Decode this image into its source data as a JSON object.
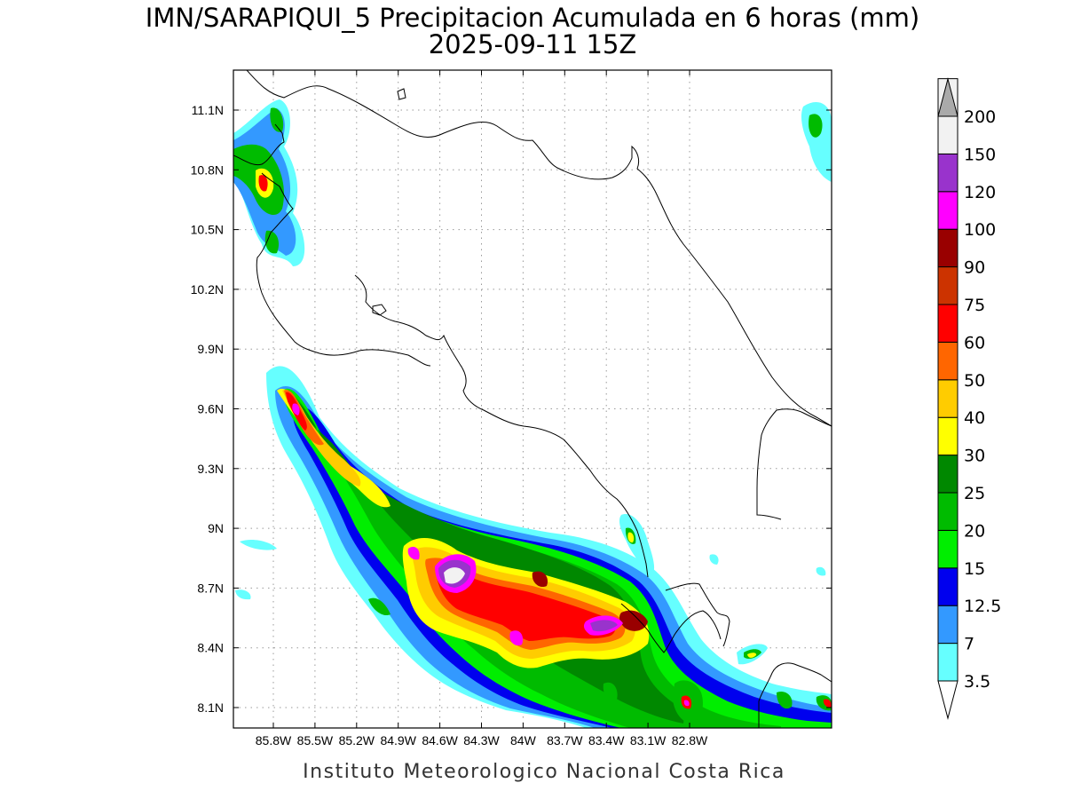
{
  "map": {
    "title": "IMN/SARAPIQUI_5 Precipitacion Acumulada en 6 horas (mm)",
    "subtitle": "2025-09-11 15Z",
    "footer": "Instituto Meteorologico Nacional Costa Rica",
    "lon_labels": [
      "85.8W",
      "85.5W",
      "85.2W",
      "84.9W",
      "84.6W",
      "84.3W",
      "84W",
      "83.7W",
      "83.4W",
      "83.1W",
      "82.8W"
    ],
    "lat_labels": [
      "11.1N",
      "10.8N",
      "10.5N",
      "10.2N",
      "9.9N",
      "9.6N",
      "9.3N",
      "9N",
      "8.7N",
      "8.4N",
      "8.1N"
    ],
    "legend": {
      "bins": [
        {
          "label": "3.5",
          "color": "#66ffff"
        },
        {
          "label": "7",
          "color": "#3399ff"
        },
        {
          "label": "12.5",
          "color": "#0000ee"
        },
        {
          "label": "15",
          "color": "#00ee00"
        },
        {
          "label": "20",
          "color": "#00bb00"
        },
        {
          "label": "25",
          "color": "#008800"
        },
        {
          "label": "30",
          "color": "#ffff00"
        },
        {
          "label": "40",
          "color": "#ffcc00"
        },
        {
          "label": "50",
          "color": "#ff6600"
        },
        {
          "label": "60",
          "color": "#ff0000"
        },
        {
          "label": "75",
          "color": "#cc3300"
        },
        {
          "label": "90",
          "color": "#990000"
        },
        {
          "label": "100",
          "color": "#ff00ff"
        },
        {
          "label": "120",
          "color": "#9933cc"
        },
        {
          "label": "150",
          "color": "#f2f2f2"
        },
        {
          "label": "200",
          "color": "#aaaaaa"
        }
      ]
    }
  }
}
